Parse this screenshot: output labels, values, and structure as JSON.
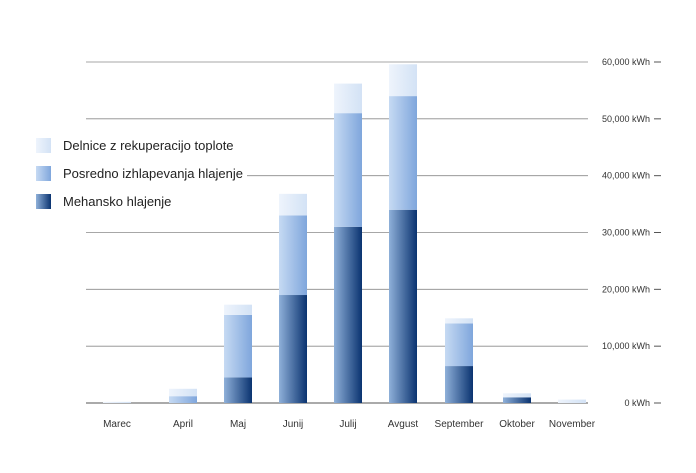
{
  "chart_data": {
    "type": "bar",
    "stacked": true,
    "categories": [
      "Marec",
      "April",
      "Maj",
      "Junij",
      "Julij",
      "Avgust",
      "September",
      "Oktober",
      "November"
    ],
    "series": [
      {
        "name": "Mehansko hlajenje",
        "values": [
          0,
          0,
          4500,
          19000,
          31000,
          34000,
          6500,
          1000,
          0
        ],
        "color": "#1f4f8a"
      },
      {
        "name": "Posredno izhlapevanja hlajenje",
        "values": [
          0,
          1200,
          11000,
          14000,
          20000,
          20000,
          7500,
          0,
          0
        ],
        "color": "#9dbde8"
      },
      {
        "name": "Delnice z rekuperacijo toplote",
        "values": [
          200,
          1300,
          1800,
          3800,
          5200,
          5600,
          900,
          700,
          600
        ],
        "color": "#dce8f7"
      }
    ],
    "y_ticks": [
      "0 kWh",
      "10,000 kWh",
      "20,000 kWh",
      "30,000 kWh",
      "40,000 kWh",
      "50,000 kWh",
      "60,000 kWh"
    ],
    "ylim": [
      0,
      60000
    ],
    "grid": true,
    "legend_position": "left",
    "title": "",
    "xlabel": "",
    "ylabel": ""
  }
}
